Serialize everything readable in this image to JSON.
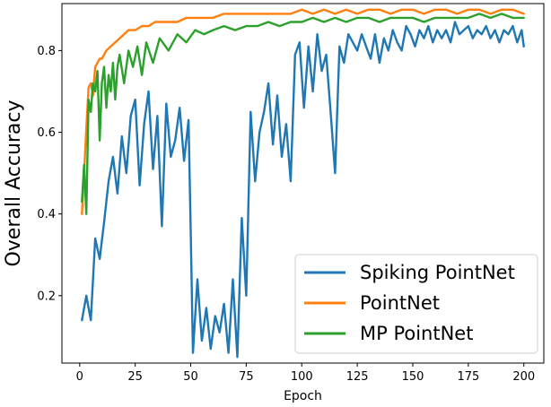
{
  "chart_data": {
    "type": "line",
    "title": "",
    "xlabel": "Epoch",
    "ylabel": "Overall Accuracy",
    "xlim": [
      -8,
      209
    ],
    "ylim": [
      0.035,
      0.915
    ],
    "xticks": [
      0,
      25,
      50,
      75,
      100,
      125,
      150,
      175,
      200
    ],
    "yticks": [
      0.2,
      0.4,
      0.6,
      0.8
    ],
    "grid": false,
    "legend_position": "lower-right",
    "series": [
      {
        "name": "Spiking PointNet",
        "color": "#1f77b4",
        "x": [
          1,
          3,
          5,
          7,
          9,
          11,
          13,
          15,
          17,
          19,
          21,
          23,
          25,
          27,
          29,
          31,
          33,
          35,
          37,
          39,
          41,
          43,
          45,
          47,
          49,
          50,
          51,
          53,
          55,
          57,
          59,
          61,
          63,
          65,
          67,
          69,
          71,
          73,
          75,
          77,
          79,
          81,
          83,
          85,
          87,
          89,
          91,
          93,
          95,
          97,
          99,
          101,
          103,
          105,
          107,
          109,
          111,
          113,
          115,
          117,
          119,
          121,
          123,
          125,
          127,
          129,
          131,
          133,
          135,
          137,
          139,
          141,
          143,
          145,
          147,
          149,
          151,
          153,
          155,
          157,
          159,
          161,
          163,
          165,
          167,
          169,
          171,
          173,
          175,
          177,
          179,
          181,
          183,
          185,
          187,
          189,
          191,
          193,
          195,
          197,
          199,
          200
        ],
        "y": [
          0.14,
          0.2,
          0.14,
          0.34,
          0.29,
          0.38,
          0.48,
          0.54,
          0.45,
          0.59,
          0.5,
          0.64,
          0.68,
          0.47,
          0.62,
          0.7,
          0.51,
          0.64,
          0.37,
          0.67,
          0.54,
          0.58,
          0.66,
          0.53,
          0.63,
          0.36,
          0.06,
          0.24,
          0.09,
          0.17,
          0.07,
          0.15,
          0.11,
          0.18,
          0.06,
          0.24,
          0.05,
          0.39,
          0.2,
          0.65,
          0.48,
          0.6,
          0.65,
          0.72,
          0.57,
          0.69,
          0.54,
          0.62,
          0.48,
          0.79,
          0.82,
          0.66,
          0.81,
          0.7,
          0.84,
          0.75,
          0.79,
          0.65,
          0.5,
          0.81,
          0.77,
          0.84,
          0.82,
          0.8,
          0.84,
          0.81,
          0.78,
          0.84,
          0.77,
          0.83,
          0.8,
          0.85,
          0.82,
          0.8,
          0.86,
          0.84,
          0.81,
          0.85,
          0.83,
          0.86,
          0.82,
          0.85,
          0.83,
          0.85,
          0.82,
          0.87,
          0.84,
          0.85,
          0.86,
          0.83,
          0.85,
          0.84,
          0.86,
          0.83,
          0.85,
          0.82,
          0.85,
          0.84,
          0.86,
          0.82,
          0.85,
          0.81
        ]
      },
      {
        "name": "PointNet",
        "color": "#ff7f0e",
        "x": [
          1,
          2,
          3,
          4,
          5,
          6,
          7,
          8,
          9,
          10,
          12,
          14,
          16,
          18,
          20,
          22,
          25,
          28,
          31,
          34,
          37,
          40,
          44,
          48,
          52,
          56,
          60,
          65,
          70,
          75,
          80,
          85,
          90,
          95,
          100,
          105,
          110,
          115,
          120,
          125,
          130,
          135,
          140,
          145,
          150,
          155,
          160,
          165,
          170,
          175,
          180,
          185,
          190,
          195,
          200
        ],
        "y": [
          0.4,
          0.5,
          0.61,
          0.71,
          0.72,
          0.69,
          0.76,
          0.77,
          0.78,
          0.78,
          0.8,
          0.81,
          0.82,
          0.83,
          0.84,
          0.85,
          0.85,
          0.86,
          0.86,
          0.87,
          0.87,
          0.87,
          0.87,
          0.88,
          0.88,
          0.88,
          0.88,
          0.89,
          0.89,
          0.89,
          0.89,
          0.89,
          0.89,
          0.89,
          0.9,
          0.89,
          0.9,
          0.89,
          0.9,
          0.89,
          0.9,
          0.9,
          0.89,
          0.9,
          0.9,
          0.89,
          0.9,
          0.9,
          0.89,
          0.9,
          0.9,
          0.89,
          0.9,
          0.9,
          0.89
        ]
      },
      {
        "name": "MP PointNet",
        "color": "#2ca02c",
        "x": [
          1,
          2,
          3,
          4,
          5,
          6,
          7,
          8,
          9,
          10,
          11,
          12,
          13,
          14,
          15,
          16,
          17,
          18,
          20,
          22,
          24,
          26,
          28,
          30,
          33,
          36,
          40,
          44,
          48,
          52,
          56,
          60,
          65,
          70,
          75,
          80,
          85,
          90,
          95,
          100,
          105,
          110,
          115,
          120,
          125,
          130,
          135,
          140,
          145,
          150,
          155,
          160,
          165,
          170,
          175,
          180,
          185,
          190,
          195,
          200
        ],
        "y": [
          0.43,
          0.52,
          0.4,
          0.68,
          0.65,
          0.72,
          0.7,
          0.75,
          0.58,
          0.72,
          0.76,
          0.66,
          0.74,
          0.7,
          0.77,
          0.68,
          0.76,
          0.79,
          0.72,
          0.8,
          0.76,
          0.81,
          0.74,
          0.82,
          0.77,
          0.83,
          0.8,
          0.84,
          0.82,
          0.85,
          0.84,
          0.85,
          0.86,
          0.85,
          0.86,
          0.86,
          0.87,
          0.86,
          0.87,
          0.87,
          0.88,
          0.87,
          0.88,
          0.87,
          0.88,
          0.88,
          0.87,
          0.88,
          0.88,
          0.88,
          0.87,
          0.88,
          0.88,
          0.88,
          0.88,
          0.89,
          0.88,
          0.89,
          0.88,
          0.88
        ]
      }
    ]
  }
}
